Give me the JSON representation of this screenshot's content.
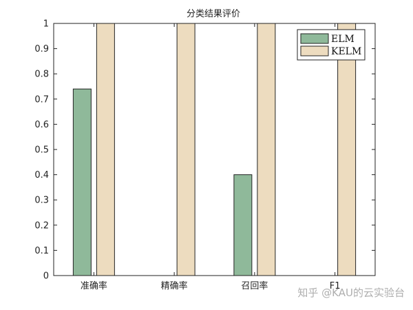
{
  "chart_data": {
    "type": "bar",
    "title": "分类结果评价",
    "categories": [
      "准确率",
      "精确率",
      "召回率",
      "F1"
    ],
    "series": [
      {
        "name": "ELM",
        "values": [
          0.74,
          0,
          0.4,
          0
        ],
        "color": "#8fb99a"
      },
      {
        "name": "KELM",
        "values": [
          1,
          1,
          1,
          1
        ],
        "color": "#eddcbf"
      }
    ],
    "ylim": [
      0,
      1
    ],
    "yticks": [
      "0",
      "0.1",
      "0.2",
      "0.3",
      "0.4",
      "0.5",
      "0.6",
      "0.7",
      "0.8",
      "0.9",
      "1"
    ],
    "grid": false,
    "legend_position": "top-right"
  },
  "watermark": "知乎 @KAU的云实验台"
}
